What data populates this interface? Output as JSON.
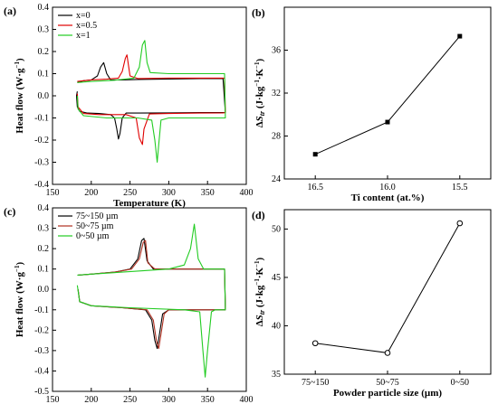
{
  "chart_data": [
    {
      "panel": "(a)",
      "type": "line",
      "xlabel": "Temperature (K)",
      "ylabel": "Heat flow (W·g⁻¹)",
      "xlim": [
        150,
        400
      ],
      "ylim": [
        -0.4,
        0.4
      ],
      "xticks": [
        "150",
        "200",
        "250",
        "300",
        "350",
        "400"
      ],
      "yticks": [
        "-0.4",
        "-0.3",
        "-0.2",
        "-0.1",
        "0.0",
        "0.1",
        "0.2",
        "0.3",
        "0.4"
      ],
      "legend_position": "top-left",
      "series": [
        {
          "name": "x=0",
          "color": "#000000",
          "x": [
            182,
            190,
            200,
            208,
            212,
            216,
            220,
            225,
            240,
            260,
            300,
            340,
            370,
            373,
            370,
            340,
            300,
            260,
            245,
            240,
            237,
            235,
            233,
            230,
            225,
            210,
            195,
            185,
            182,
            181,
            182
          ],
          "y": [
            0.06,
            0.068,
            0.072,
            0.09,
            0.13,
            0.15,
            0.1,
            0.072,
            0.072,
            0.074,
            0.076,
            0.078,
            0.078,
            -0.075,
            -0.076,
            -0.076,
            -0.077,
            -0.078,
            -0.078,
            -0.1,
            -0.17,
            -0.195,
            -0.15,
            -0.1,
            -0.085,
            -0.08,
            -0.078,
            -0.07,
            -0.05,
            0.0,
            0.02
          ]
        },
        {
          "name": "x=0.5",
          "color": "#e00000",
          "x": [
            182,
            200,
            220,
            235,
            240,
            244,
            246,
            250,
            260,
            300,
            340,
            372,
            373,
            370,
            340,
            300,
            275,
            268,
            266,
            262,
            258,
            245,
            210,
            190,
            183,
            182
          ],
          "y": [
            0.065,
            0.072,
            0.075,
            0.08,
            0.11,
            0.17,
            0.185,
            0.09,
            0.078,
            0.08,
            0.08,
            0.08,
            -0.076,
            -0.077,
            -0.078,
            -0.08,
            -0.082,
            -0.15,
            -0.22,
            -0.19,
            -0.1,
            -0.085,
            -0.085,
            -0.08,
            -0.05,
            0.01
          ]
        },
        {
          "name": "x=1",
          "color": "#22cc22",
          "x": [
            182,
            200,
            230,
            255,
            262,
            266,
            269,
            272,
            276,
            300,
            340,
            372,
            373,
            370,
            340,
            300,
            290,
            287,
            285,
            282,
            278,
            260,
            220,
            190,
            183,
            182
          ],
          "y": [
            0.06,
            0.065,
            0.07,
            0.08,
            0.13,
            0.23,
            0.25,
            0.15,
            0.105,
            0.1,
            0.1,
            0.1,
            -0.1,
            -0.1,
            -0.1,
            -0.1,
            -0.11,
            -0.22,
            -0.3,
            -0.2,
            -0.11,
            -0.1,
            -0.1,
            -0.09,
            -0.06,
            0.0
          ]
        }
      ]
    },
    {
      "panel": "(b)",
      "type": "line",
      "xlabel": "Ti content (at.%)",
      "ylabel": "ΔS_tr (J·kg⁻¹·K⁻¹)",
      "categories": [
        "16.5",
        "16.0",
        "15.5"
      ],
      "ylim": [
        24,
        40
      ],
      "yticks": [
        "24",
        "28",
        "32",
        "36"
      ],
      "marker": "square",
      "series": [
        {
          "values": [
            26.3,
            29.3,
            37.3
          ]
        }
      ]
    },
    {
      "panel": "(c)",
      "type": "line",
      "xlabel": "Temperature (K)",
      "ylabel": "Heat flow (W·g⁻¹)",
      "xlim": [
        150,
        400
      ],
      "ylim": [
        -0.5,
        0.4
      ],
      "xticks": [
        "150",
        "200",
        "250",
        "300",
        "350",
        "400"
      ],
      "yticks": [
        "-0.5",
        "-0.4",
        "-0.3",
        "-0.2",
        "-0.1",
        "0.0",
        "0.1",
        "0.2",
        "0.3",
        "0.4"
      ],
      "legend_position": "top-left",
      "series": [
        {
          "name": "75~150 µm",
          "color": "#000000",
          "x": [
            183,
            200,
            230,
            250,
            260,
            265,
            268,
            272,
            280,
            300,
            340,
            372,
            373,
            370,
            340,
            300,
            292,
            288,
            285,
            282,
            278,
            270,
            240,
            200,
            185,
            183
          ],
          "y": [
            0.07,
            0.075,
            0.085,
            0.1,
            0.15,
            0.24,
            0.25,
            0.14,
            0.1,
            0.1,
            0.1,
            0.1,
            -0.1,
            -0.1,
            -0.1,
            -0.1,
            -0.12,
            -0.22,
            -0.29,
            -0.25,
            -0.15,
            -0.1,
            -0.09,
            -0.08,
            -0.06,
            0.0
          ]
        },
        {
          "name": "50~75 µm",
          "color": "#b03020",
          "x": [
            183,
            200,
            230,
            252,
            262,
            267,
            270,
            273,
            282,
            300,
            340,
            372,
            373,
            370,
            340,
            300,
            294,
            290,
            287,
            284,
            280,
            272,
            240,
            200,
            185,
            183
          ],
          "y": [
            0.07,
            0.075,
            0.085,
            0.1,
            0.15,
            0.23,
            0.24,
            0.13,
            0.1,
            0.1,
            0.1,
            0.1,
            -0.1,
            -0.1,
            -0.1,
            -0.1,
            -0.12,
            -0.22,
            -0.29,
            -0.25,
            -0.15,
            -0.1,
            -0.09,
            -0.08,
            -0.06,
            0.0
          ]
        },
        {
          "name": "0~50 µm",
          "color": "#22cc22",
          "x": [
            182,
            200,
            240,
            300,
            320,
            328,
            333,
            338,
            345,
            372,
            373,
            370,
            360,
            355,
            350,
            347,
            344,
            340,
            320,
            250,
            200,
            185,
            182
          ],
          "y": [
            0.07,
            0.075,
            0.085,
            0.1,
            0.12,
            0.2,
            0.32,
            0.15,
            0.1,
            0.1,
            -0.1,
            -0.1,
            -0.1,
            -0.11,
            -0.3,
            -0.43,
            -0.3,
            -0.11,
            -0.1,
            -0.09,
            -0.08,
            -0.06,
            0.02
          ]
        }
      ]
    },
    {
      "panel": "(d)",
      "type": "line",
      "xlabel": "Powder particle size (µm)",
      "ylabel": "ΔS_tr (J·kg⁻¹·K⁻¹)",
      "categories": [
        "75~150",
        "50~75",
        "0~50"
      ],
      "ylim": [
        35,
        52
      ],
      "yticks": [
        "35",
        "40",
        "45",
        "50"
      ],
      "marker": "circle",
      "series": [
        {
          "values": [
            38.2,
            37.2,
            50.6
          ]
        }
      ]
    }
  ]
}
